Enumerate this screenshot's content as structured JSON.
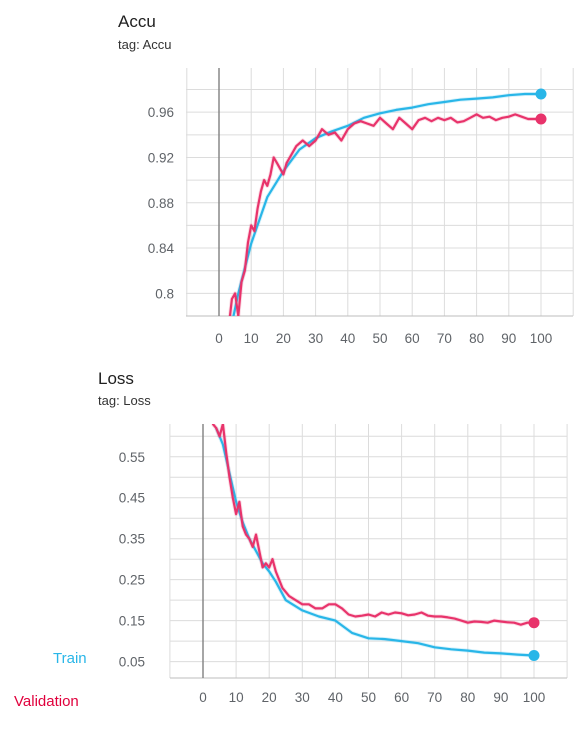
{
  "charts": [
    {
      "title": "Accu",
      "tag": "tag: Accu"
    },
    {
      "title": "Loss",
      "tag": "tag: Loss"
    }
  ],
  "legend": {
    "train": {
      "label": "Train",
      "color": "#29b6e8"
    },
    "validation": {
      "label": "Validation",
      "color": "#e0003c"
    }
  },
  "chart_data": [
    {
      "type": "line",
      "title": "Accu",
      "subtitle": "tag: Accu",
      "xlabel": "",
      "ylabel": "",
      "xlim": [
        -10,
        105
      ],
      "ylim": [
        0.78,
        0.999
      ],
      "xticks": [
        0,
        10,
        20,
        30,
        40,
        50,
        60,
        70,
        80,
        90,
        100
      ],
      "yticks": [
        0.8,
        0.84,
        0.88,
        0.92,
        0.96
      ],
      "ytick_labels": [
        "0.8",
        "0.84",
        "0.88",
        "0.92",
        "0.96"
      ],
      "grid": true,
      "series": [
        {
          "name": "Train",
          "color": "#29b6e8",
          "x": [
            3,
            6,
            10,
            15,
            20,
            25,
            30,
            35,
            40,
            45,
            50,
            55,
            60,
            65,
            70,
            75,
            80,
            85,
            90,
            95,
            100
          ],
          "y": [
            0.76,
            0.8,
            0.844,
            0.885,
            0.908,
            0.927,
            0.937,
            0.943,
            0.948,
            0.955,
            0.959,
            0.962,
            0.964,
            0.967,
            0.969,
            0.971,
            0.972,
            0.973,
            0.975,
            0.976,
            0.976
          ]
        },
        {
          "name": "Validation",
          "color": "#e8336b",
          "x": [
            3,
            4,
            5,
            6,
            7,
            8,
            9,
            10,
            11,
            12,
            13,
            14,
            15,
            16,
            17,
            18,
            19,
            20,
            21,
            22,
            24,
            26,
            28,
            30,
            32,
            34,
            36,
            38,
            40,
            42,
            44,
            46,
            48,
            50,
            52,
            54,
            56,
            58,
            60,
            62,
            64,
            66,
            68,
            70,
            72,
            74,
            76,
            78,
            80,
            82,
            84,
            86,
            88,
            90,
            92,
            94,
            96,
            98,
            100
          ],
          "y": [
            0.77,
            0.795,
            0.8,
            0.78,
            0.81,
            0.82,
            0.845,
            0.86,
            0.855,
            0.875,
            0.89,
            0.9,
            0.895,
            0.905,
            0.92,
            0.915,
            0.91,
            0.905,
            0.915,
            0.92,
            0.93,
            0.935,
            0.93,
            0.935,
            0.945,
            0.94,
            0.942,
            0.935,
            0.945,
            0.95,
            0.952,
            0.95,
            0.948,
            0.955,
            0.95,
            0.945,
            0.955,
            0.95,
            0.945,
            0.953,
            0.955,
            0.952,
            0.955,
            0.953,
            0.955,
            0.951,
            0.952,
            0.955,
            0.958,
            0.955,
            0.956,
            0.953,
            0.955,
            0.956,
            0.958,
            0.956,
            0.954,
            0.954,
            0.954
          ]
        }
      ]
    },
    {
      "type": "line",
      "title": "Loss",
      "subtitle": "tag: Loss",
      "xlabel": "",
      "ylabel": "",
      "xlim": [
        -10,
        105
      ],
      "ylim": [
        0.01,
        0.63
      ],
      "xticks": [
        0,
        10,
        20,
        30,
        40,
        50,
        60,
        70,
        80,
        90,
        100
      ],
      "yticks": [
        0.05,
        0.15,
        0.25,
        0.35,
        0.45,
        0.55
      ],
      "ytick_labels": [
        "0.05",
        "0.15",
        "0.25",
        "0.35",
        "0.45",
        "0.55"
      ],
      "grid": true,
      "series": [
        {
          "name": "Train",
          "color": "#29b6e8",
          "x": [
            4,
            6,
            8,
            10,
            12,
            14,
            16,
            18,
            20,
            22,
            25,
            28,
            30,
            35,
            40,
            45,
            50,
            55,
            60,
            65,
            70,
            75,
            80,
            85,
            90,
            95,
            100
          ],
          "y": [
            0.62,
            0.58,
            0.51,
            0.44,
            0.39,
            0.35,
            0.32,
            0.29,
            0.27,
            0.245,
            0.2,
            0.185,
            0.175,
            0.16,
            0.15,
            0.12,
            0.107,
            0.105,
            0.1,
            0.095,
            0.085,
            0.08,
            0.077,
            0.072,
            0.07,
            0.067,
            0.065
          ]
        },
        {
          "name": "Validation",
          "color": "#e8336b",
          "x": [
            3,
            4,
            5,
            6,
            7,
            8,
            9,
            10,
            11,
            12,
            13,
            14,
            15,
            16,
            17,
            18,
            19,
            20,
            21,
            22,
            24,
            26,
            28,
            30,
            32,
            34,
            36,
            38,
            40,
            42,
            44,
            46,
            48,
            50,
            52,
            54,
            56,
            58,
            60,
            62,
            64,
            66,
            68,
            70,
            72,
            74,
            76,
            78,
            80,
            82,
            84,
            86,
            88,
            90,
            92,
            94,
            96,
            98,
            100
          ],
          "y": [
            0.63,
            0.62,
            0.6,
            0.63,
            0.56,
            0.5,
            0.45,
            0.41,
            0.44,
            0.38,
            0.36,
            0.35,
            0.33,
            0.36,
            0.32,
            0.28,
            0.29,
            0.28,
            0.3,
            0.27,
            0.23,
            0.21,
            0.2,
            0.19,
            0.19,
            0.18,
            0.18,
            0.19,
            0.19,
            0.18,
            0.165,
            0.16,
            0.162,
            0.165,
            0.16,
            0.17,
            0.165,
            0.17,
            0.168,
            0.163,
            0.165,
            0.17,
            0.162,
            0.16,
            0.16,
            0.158,
            0.155,
            0.15,
            0.145,
            0.148,
            0.147,
            0.145,
            0.15,
            0.148,
            0.146,
            0.145,
            0.14,
            0.145,
            0.145
          ]
        }
      ]
    }
  ]
}
